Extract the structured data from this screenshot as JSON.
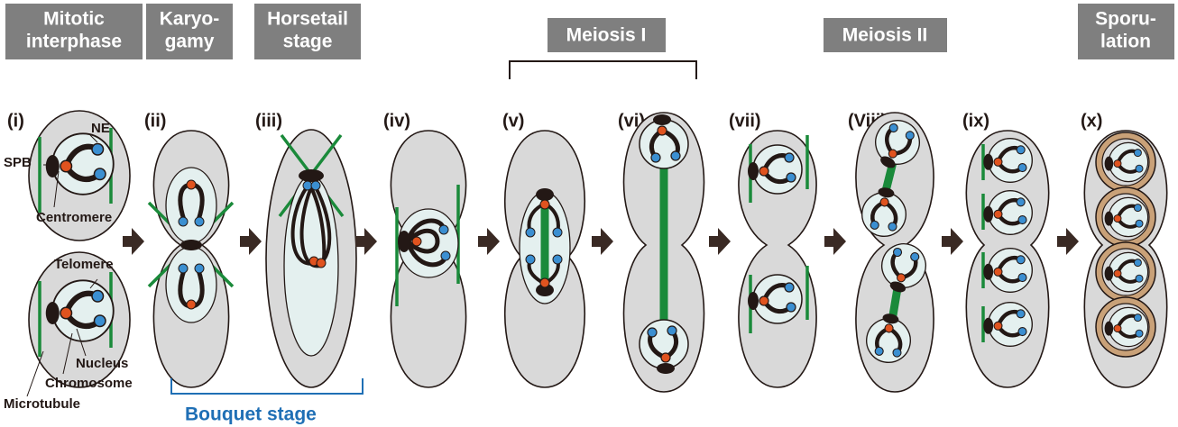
{
  "headers": [
    {
      "lines": [
        "Mitotic",
        "interphase"
      ]
    },
    {
      "lines": [
        "Karyo-",
        "gamy"
      ]
    },
    {
      "lines": [
        "Horsetail",
        "stage"
      ]
    },
    {
      "lines": [
        "Meiosis I"
      ]
    },
    {
      "lines": [
        "Meiosis II"
      ]
    },
    {
      "lines": [
        "Sporu-",
        "lation"
      ]
    }
  ],
  "stages": [
    "(i)",
    "(ii)",
    "(iii)",
    "(iv)",
    "(v)",
    "(vi)",
    "(vii)",
    "(Viii)",
    "(ix)",
    "(x)"
  ],
  "labels": {
    "spb": "SPB",
    "ne": "NE",
    "centromere": "Centromere",
    "telomere": "Telomere",
    "nucleus": "Nucleus",
    "chromosome": "Chromosome",
    "microtubule": "Microtubule",
    "bouquet": "Bouquet stage"
  }
}
